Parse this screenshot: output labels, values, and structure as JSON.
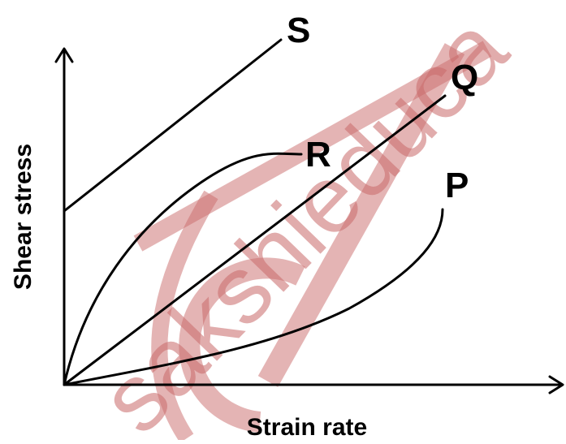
{
  "diagram": {
    "x_axis_label": "Strain rate",
    "y_axis_label": "Shear stress",
    "curves": [
      {
        "id": "S",
        "label": "S"
      },
      {
        "id": "R",
        "label": "R"
      },
      {
        "id": "Q",
        "label": "Q"
      },
      {
        "id": "P",
        "label": "P"
      }
    ]
  },
  "watermark": {
    "text": "sakshieduca",
    "color": "#c96a6a"
  }
}
